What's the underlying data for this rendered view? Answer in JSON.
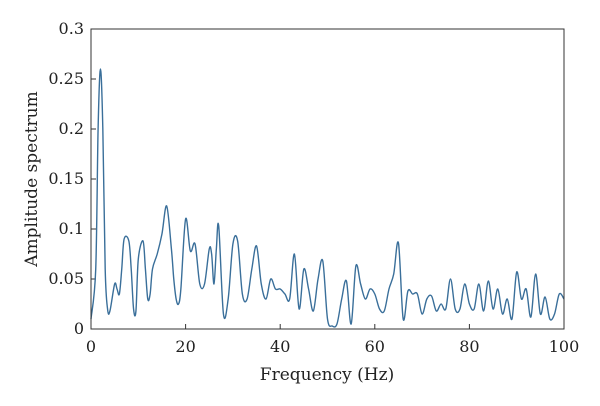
{
  "chart_data": {
    "type": "line",
    "xlabel": "Frequency (Hz)",
    "ylabel": "Amplitude spectrum",
    "xlim": [
      0,
      100
    ],
    "ylim": [
      0,
      0.3
    ],
    "x_ticks": [
      0,
      20,
      40,
      60,
      80,
      100
    ],
    "x_tick_labels": [
      "0",
      "20",
      "40",
      "60",
      "80",
      "100"
    ],
    "y_ticks": [
      0,
      0.05,
      0.1,
      0.15,
      0.2,
      0.25,
      0.3
    ],
    "y_tick_labels": [
      "0",
      "0.05",
      "0.1",
      "0.15",
      "0.2",
      "0.25",
      "0.3"
    ],
    "grid": false,
    "line_color": "#3a6f9a",
    "series": [
      {
        "x": [
          0,
          1,
          1.5,
          2,
          2.5,
          3,
          3.5,
          4,
          5,
          5.5,
          6,
          6.5,
          7,
          8,
          8.5,
          9,
          9.5,
          10,
          11,
          11.5,
          12,
          12.5,
          13,
          14,
          15,
          16,
          17,
          17.5,
          18,
          18.5,
          19,
          20,
          21,
          22,
          23,
          24,
          25,
          25.5,
          26,
          26.5,
          27,
          28,
          29,
          30,
          31,
          32,
          33,
          34,
          35,
          36,
          37,
          38,
          39,
          40,
          41,
          42,
          43,
          44,
          45,
          46,
          47,
          48,
          49,
          50,
          51,
          52,
          53,
          54,
          55,
          56,
          57,
          58,
          59,
          60,
          61,
          62,
          63,
          64,
          65,
          66,
          67,
          68,
          69,
          70,
          71,
          72,
          73,
          74,
          75,
          76,
          77,
          78,
          79,
          80,
          81,
          82,
          83,
          84,
          85,
          86,
          87,
          88,
          89,
          90,
          91,
          92,
          93,
          94,
          95,
          96,
          97,
          98,
          99,
          100
        ],
        "y": [
          0.01,
          0.06,
          0.2,
          0.26,
          0.2,
          0.06,
          0.02,
          0.018,
          0.045,
          0.04,
          0.035,
          0.06,
          0.09,
          0.088,
          0.06,
          0.02,
          0.018,
          0.07,
          0.088,
          0.06,
          0.03,
          0.035,
          0.06,
          0.075,
          0.095,
          0.123,
          0.08,
          0.05,
          0.03,
          0.025,
          0.04,
          0.11,
          0.078,
          0.085,
          0.045,
          0.045,
          0.08,
          0.075,
          0.045,
          0.08,
          0.103,
          0.015,
          0.03,
          0.085,
          0.088,
          0.035,
          0.03,
          0.06,
          0.083,
          0.045,
          0.03,
          0.05,
          0.04,
          0.04,
          0.035,
          0.03,
          0.075,
          0.02,
          0.06,
          0.04,
          0.018,
          0.05,
          0.068,
          0.01,
          0.003,
          0.005,
          0.03,
          0.048,
          0.005,
          0.063,
          0.045,
          0.03,
          0.04,
          0.035,
          0.02,
          0.018,
          0.04,
          0.055,
          0.086,
          0.01,
          0.038,
          0.035,
          0.035,
          0.015,
          0.03,
          0.033,
          0.018,
          0.025,
          0.02,
          0.05,
          0.02,
          0.02,
          0.045,
          0.025,
          0.02,
          0.045,
          0.018,
          0.048,
          0.02,
          0.04,
          0.015,
          0.03,
          0.01,
          0.057,
          0.03,
          0.04,
          0.012,
          0.055,
          0.015,
          0.032,
          0.01,
          0.015,
          0.035,
          0.03
        ]
      }
    ]
  }
}
